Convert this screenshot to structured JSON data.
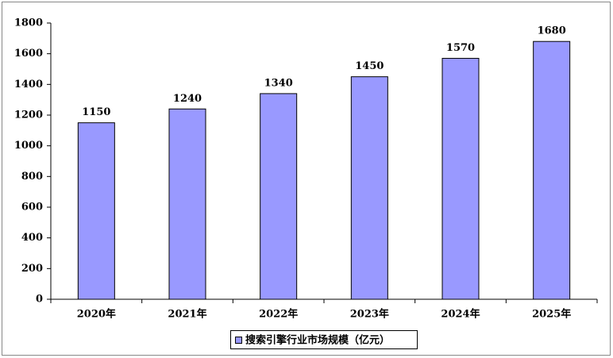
{
  "chart_data": {
    "type": "bar",
    "categories": [
      "2020年",
      "2021年",
      "2022年",
      "2023年",
      "2024年",
      "2025年"
    ],
    "series": [
      {
        "name": "搜索引擎行业市场规模（亿元）",
        "color": "#9999ff",
        "values": [
          1150,
          1240,
          1340,
          1450,
          1570,
          1680
        ]
      }
    ],
    "ylim": [
      0,
      1800
    ],
    "yticks": [
      0,
      200,
      400,
      600,
      800,
      1000,
      1200,
      1400,
      1600,
      1800
    ]
  }
}
